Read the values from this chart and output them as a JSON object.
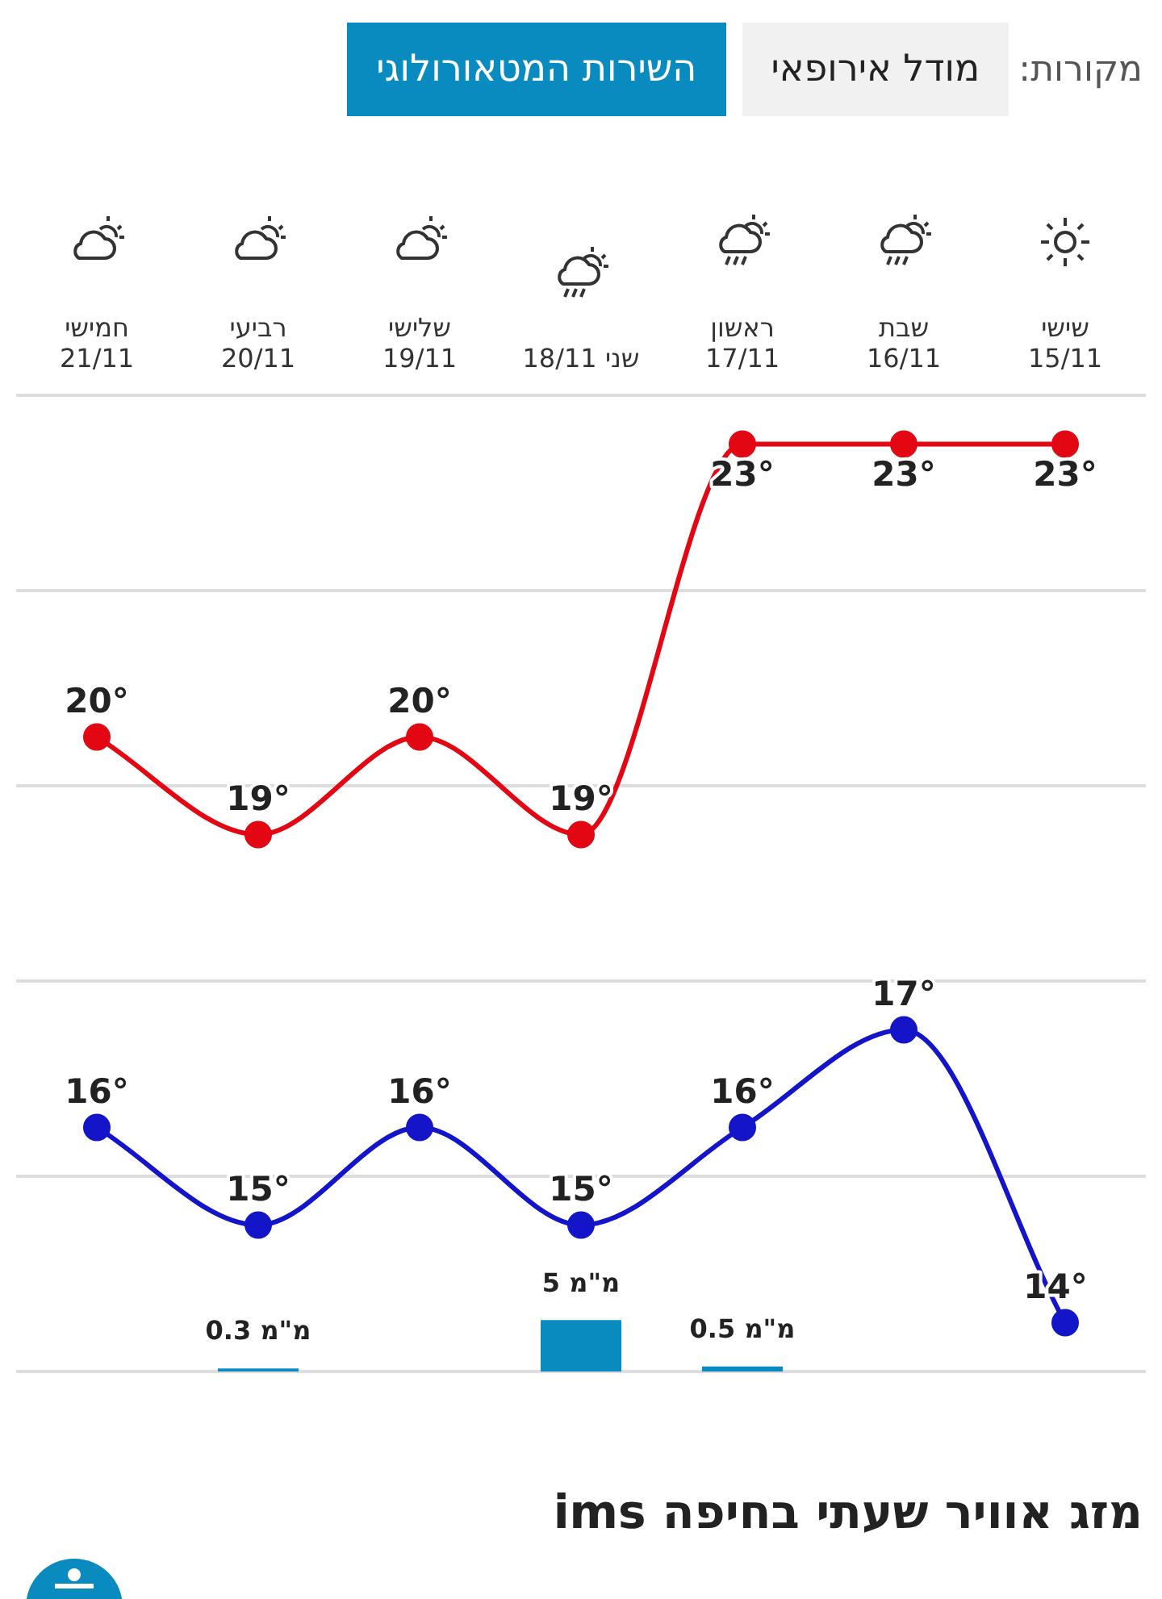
{
  "chart_data": {
    "type": "line",
    "categories": [
      "חמישי\n21/11",
      "רביעי\n20/11",
      "שלישי\n19/11",
      "18/11 שני",
      "ראשון\n17/11",
      "שבת\n16/11",
      "שישי\n15/11"
    ],
    "series": [
      {
        "color": "#e30613",
        "values": [
          20,
          19,
          20,
          19,
          23,
          23,
          23
        ],
        "value_labels": [
          "20°",
          "19°",
          "20°",
          "19°",
          "23°",
          "23°",
          "23°"
        ]
      },
      {
        "color": "#1414c8",
        "values": [
          16,
          15,
          16,
          15,
          16,
          17,
          14
        ],
        "value_labels": [
          "16°",
          "15°",
          "16°",
          "15°",
          "16°",
          "17°",
          "14°"
        ]
      },
      {
        "type": "bar",
        "axis": "y2",
        "color": "#0a8bc0",
        "values": [
          null,
          0.3,
          null,
          5,
          0.5,
          null,
          null
        ],
        "value_labels": [
          null,
          "0.3 מ\"מ",
          null,
          "5 מ\"מ",
          "0.5 מ\"מ",
          null,
          null
        ]
      }
    ],
    "ylim": [
      13.5,
      23.5
    ],
    "yticks": [
      {
        "value": 13.5,
        "label": null
      },
      {
        "value": 15.5,
        "label": null
      },
      {
        "value": 17.5,
        "label": null
      },
      {
        "value": 19.5,
        "label": null
      },
      {
        "value": 21.5,
        "label": null
      },
      {
        "value": 23.5,
        "label": null
      }
    ],
    "y2lim": [
      0,
      95
    ],
    "grid": "y",
    "marker": "circle",
    "legend": false,
    "tick_labels": "x",
    "annotations": [
      "מקורות:",
      "מודל אירופאי",
      "השירות המטאורולוגי",
      "מזג אוויר שעתי בחיפה ims"
    ]
  }
}
